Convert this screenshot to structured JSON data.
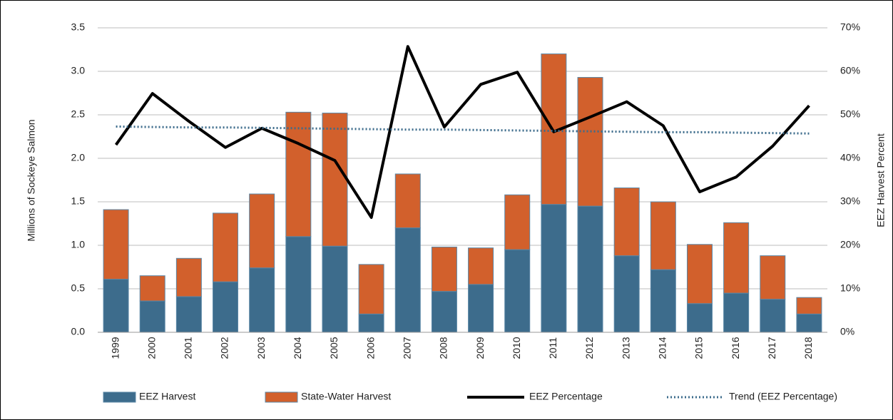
{
  "chart_data": {
    "type": "bar",
    "y_label": "Millions of Sockeye Salmon",
    "y2_label": "EEZ Harvest Percent",
    "categories": [
      "1999",
      "2000",
      "2001",
      "2002",
      "2003",
      "2004",
      "2005",
      "2006",
      "2007",
      "2008",
      "2009",
      "2010",
      "2011",
      "2012",
      "2013",
      "2014",
      "2015",
      "2016",
      "2017",
      "2018"
    ],
    "ylim": [
      0,
      3.5
    ],
    "yticks": [
      {
        "value": 0,
        "label": "0.0"
      },
      0.5,
      {
        "value": 1,
        "label": "1.0"
      },
      1.5,
      {
        "value": 2,
        "label": "2.0"
      },
      2.5,
      {
        "value": 3,
        "label": "3.0"
      },
      3.5
    ],
    "y2lim": [
      0,
      70
    ],
    "y2ticks": [
      {
        "value": 0,
        "label": "0%"
      },
      {
        "value": 10,
        "label": "10%"
      },
      {
        "value": 20,
        "label": "20%"
      },
      {
        "value": 30,
        "label": "30%"
      },
      {
        "value": 40,
        "label": "40%"
      },
      {
        "value": 50,
        "label": "50%"
      },
      {
        "value": 60,
        "label": "60%"
      },
      {
        "value": 70,
        "label": "70%"
      }
    ],
    "grid": true,
    "legend": "bottom",
    "series": [
      {
        "name": "EEZ Harvest",
        "type": "bar",
        "color": "#3d6c8c",
        "values": [
          0.61,
          0.36,
          0.41,
          0.58,
          0.74,
          1.1,
          0.99,
          0.21,
          1.2,
          0.47,
          0.55,
          0.95,
          1.47,
          1.45,
          0.88,
          0.72,
          0.33,
          0.45,
          0.38,
          0.21
        ]
      },
      {
        "name": "State-Water Harvest",
        "type": "bar",
        "color": "#d2602c",
        "values": [
          0.8,
          0.29,
          0.44,
          0.79,
          0.85,
          1.43,
          1.53,
          0.57,
          0.62,
          0.51,
          0.42,
          0.63,
          1.73,
          1.48,
          0.78,
          0.78,
          0.68,
          0.81,
          0.5,
          0.19
        ]
      },
      {
        "name": "EEZ Percentage",
        "type": "line",
        "axis": "y2",
        "color": "#000000",
        "values": [
          43.1,
          54.9,
          48.5,
          42.5,
          46.9,
          43.4,
          39.5,
          26.4,
          65.7,
          47.2,
          57.0,
          59.8,
          46.1,
          49.5,
          53.0,
          47.5,
          32.3,
          35.7,
          42.8,
          52.1
        ]
      },
      {
        "name": "Trend (EEZ Percentage)",
        "type": "dotted",
        "axis": "y2",
        "color": "#3d6c8c",
        "values": [
          47.3,
          47.2,
          47.1,
          47.1,
          47.0,
          46.9,
          46.8,
          46.7,
          46.6,
          46.6,
          46.5,
          46.4,
          46.3,
          46.2,
          46.1,
          46.0,
          46.0,
          45.9,
          45.8,
          45.7
        ]
      }
    ]
  }
}
